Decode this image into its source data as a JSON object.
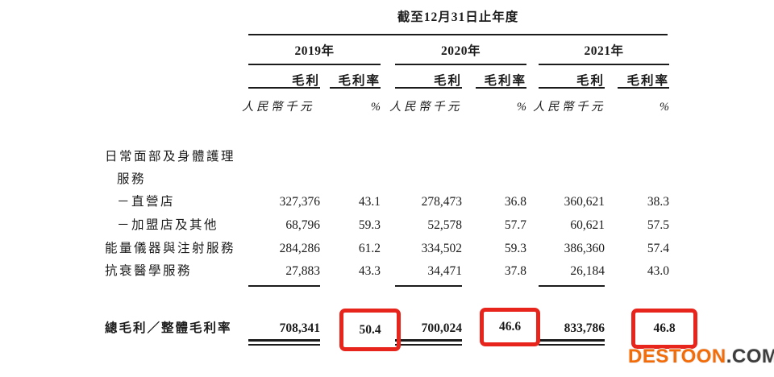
{
  "table": {
    "title": "截至12月31日止年度",
    "years": [
      "2019年",
      "2020年",
      "2021年"
    ],
    "col_gross_profit": "毛利",
    "col_gross_margin": "毛利率",
    "unit_currency": "人民幣千元",
    "unit_percent": "%",
    "rows": [
      {
        "label": "日常面部及身體護理",
        "values": [
          "",
          "",
          "",
          "",
          "",
          ""
        ]
      },
      {
        "label": "服務",
        "values": [
          "",
          "",
          "",
          "",
          "",
          ""
        ]
      },
      {
        "label": "－直營店",
        "values": [
          "327,376",
          "43.1",
          "278,473",
          "36.8",
          "360,621",
          "38.3"
        ]
      },
      {
        "label": "－加盟店及其他",
        "values": [
          "68,796",
          "59.3",
          "52,578",
          "57.7",
          "60,621",
          "57.5"
        ]
      },
      {
        "label": "能量儀器與注射服務",
        "values": [
          "284,286",
          "61.2",
          "334,502",
          "59.3",
          "386,360",
          "57.4"
        ]
      },
      {
        "label": "抗衰醫學服務",
        "values": [
          "27,883",
          "43.3",
          "34,471",
          "37.8",
          "26,184",
          "43.0"
        ]
      }
    ],
    "total": {
      "label": "總毛利／整體毛利率",
      "values": [
        "708,341",
        "50.4",
        "700,024",
        "46.6",
        "833,786",
        "46.8"
      ]
    }
  },
  "watermark": {
    "brand": "DESTOON",
    "tld": ".COM"
  },
  "colors": {
    "text": "#1b1b1b",
    "highlight_border": "#e8251c",
    "watermark_brand": "#f26c0a",
    "watermark_tld": "#3d3d3d"
  }
}
